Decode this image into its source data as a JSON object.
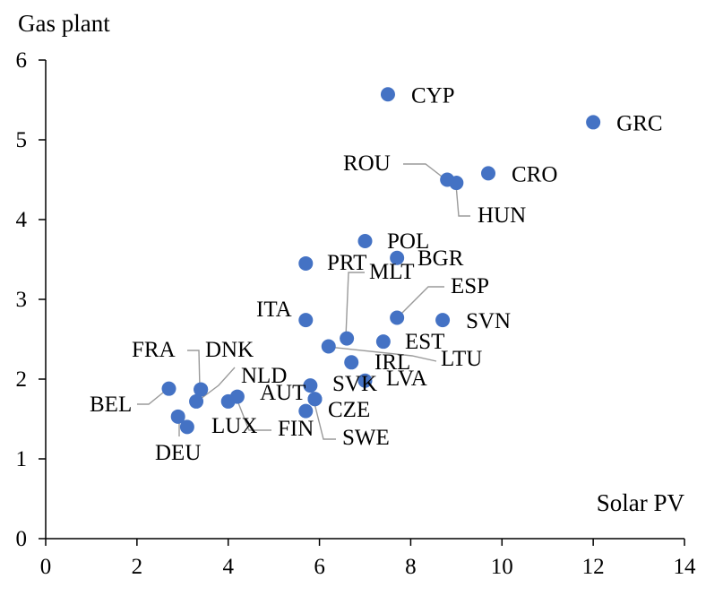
{
  "chart_data": {
    "type": "scatter",
    "ylabel": "Gas plant",
    "xlabel": "Solar PV",
    "xlim": [
      0,
      14
    ],
    "ylim": [
      0,
      6
    ],
    "xticks": [
      0,
      2,
      4,
      6,
      8,
      10,
      12,
      14
    ],
    "yticks": [
      0,
      1,
      2,
      3,
      4,
      5,
      6
    ],
    "grid": false,
    "marker_color": "#4472C4",
    "leader_color": "#9a9a9a",
    "points": [
      {
        "label": "CYP",
        "x": 7.5,
        "y": 5.57
      },
      {
        "label": "GRC",
        "x": 12.0,
        "y": 5.22
      },
      {
        "label": "CRO",
        "x": 9.7,
        "y": 4.58
      },
      {
        "label": "ROU",
        "x": 8.8,
        "y": 4.5
      },
      {
        "label": "HUN",
        "x": 9.0,
        "y": 4.46
      },
      {
        "label": "POL",
        "x": 7.0,
        "y": 3.73
      },
      {
        "label": "BGR",
        "x": 7.7,
        "y": 3.52
      },
      {
        "label": "PRT",
        "x": 5.7,
        "y": 3.45
      },
      {
        "label": "MLT",
        "x": 6.6,
        "y": 2.51
      },
      {
        "label": "ESP",
        "x": 7.7,
        "y": 2.77
      },
      {
        "label": "ITA",
        "x": 5.7,
        "y": 2.74
      },
      {
        "label": "SVN",
        "x": 8.7,
        "y": 2.74
      },
      {
        "label": "EST",
        "x": 7.4,
        "y": 2.47
      },
      {
        "label": "LTU",
        "x": 6.2,
        "y": 2.41
      },
      {
        "label": "IRL",
        "x": 6.7,
        "y": 2.21
      },
      {
        "label": "LVA",
        "x": 7.0,
        "y": 1.98
      },
      {
        "label": "SVK",
        "x": 5.8,
        "y": 1.92
      },
      {
        "label": "AUT",
        "x": 5.9,
        "y": 1.75
      },
      {
        "label": "CZE",
        "x": 5.7,
        "y": 1.6
      },
      {
        "label": "SWE",
        "x": 5.9,
        "y": 1.75
      },
      {
        "label": "FIN",
        "x": 4.2,
        "y": 1.78
      },
      {
        "label": "LUX",
        "x": 4.0,
        "y": 1.72
      },
      {
        "label": "NLD",
        "x": 3.3,
        "y": 1.72
      },
      {
        "label": "DNK",
        "x": 3.4,
        "y": 1.87
      },
      {
        "label": "FRA",
        "x": 3.4,
        "y": 1.87
      },
      {
        "label": "BEL",
        "x": 2.7,
        "y": 1.88
      },
      {
        "label": "DEU",
        "x": 3.1,
        "y": 1.4
      }
    ],
    "extra_markers": [
      {
        "x": 2.9,
        "y": 1.53
      }
    ]
  }
}
